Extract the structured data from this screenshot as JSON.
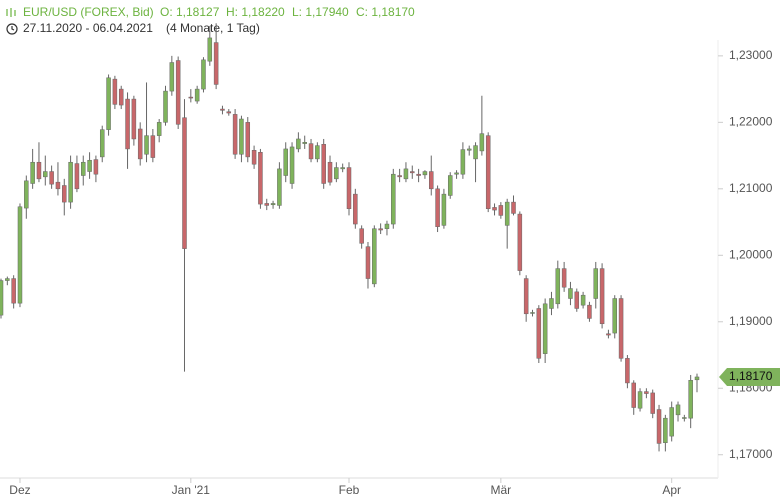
{
  "chart_data": {
    "type": "candlestick",
    "title": "EUR/USD (FOREX, Bid)",
    "ohlc_labels": [
      "O: 1,18127",
      "H: 1,18220",
      "L: 1,17940",
      "C: 1,18170"
    ],
    "period": "27.11.2020 - 06.04.2021",
    "duration": "(4 Monate, 1 Tag)",
    "up_color": "#7fb35c",
    "down_color": "#c8676a",
    "ylim": [
      1.1665,
      1.2375
    ],
    "yticks": [
      {
        "value": 1.17,
        "label": "1,17000"
      },
      {
        "value": 1.18,
        "label": "1,18000"
      },
      {
        "value": 1.19,
        "label": "1,19000"
      },
      {
        "value": 1.2,
        "label": "1,20000"
      },
      {
        "value": 1.21,
        "label": "1,21000"
      },
      {
        "value": 1.22,
        "label": "1,22000"
      },
      {
        "value": 1.23,
        "label": "1,23000"
      }
    ],
    "price_tag": {
      "value": 1.1817,
      "label": "1,18170"
    },
    "categories": [
      null,
      null,
      null,
      "Dez",
      null,
      null,
      null,
      null,
      null,
      null,
      null,
      null,
      null,
      null,
      null,
      null,
      null,
      null,
      null,
      null,
      null,
      null,
      null,
      null,
      null,
      null,
      null,
      null,
      null,
      null,
      "Jan '21",
      null,
      null,
      null,
      null,
      null,
      null,
      null,
      null,
      null,
      null,
      null,
      null,
      null,
      null,
      null,
      null,
      null,
      null,
      null,
      null,
      null,
      null,
      null,
      null,
      "Feb",
      null,
      null,
      null,
      null,
      null,
      null,
      null,
      null,
      null,
      null,
      null,
      null,
      null,
      null,
      null,
      null,
      null,
      null,
      null,
      null,
      null,
      null,
      null,
      "Mär",
      null,
      null,
      null,
      null,
      null,
      null,
      null,
      null,
      null,
      null,
      null,
      null,
      null,
      null,
      null,
      null,
      null,
      null,
      null,
      null,
      null,
      null,
      null,
      null,
      null,
      null,
      "Apr",
      null,
      null,
      null,
      null
    ],
    "open": [
      1.191,
      1.1962,
      1.1965,
      1.1928,
      1.2071,
      1.2108,
      1.214,
      1.2118,
      1.2126,
      1.211,
      1.2105,
      1.208,
      1.2138,
      1.212,
      1.2126,
      1.2144,
      1.2148,
      1.2189,
      1.2265,
      1.225,
      1.2235,
      1.2235,
      1.219,
      1.2152,
      1.218,
      1.218,
      1.22,
      1.2247,
      1.2293,
      1.2207,
      1.2238,
      1.2232,
      1.225,
      1.2292,
      1.232,
      1.222,
      1.2216,
      1.2212,
      1.2152,
      1.22,
      1.2158,
      1.2155,
      1.2078,
      1.2076,
      1.2075,
      1.212,
      1.2108,
      1.216,
      1.2168,
      1.2168,
      1.2145,
      1.2167,
      1.214,
      1.2115,
      1.213,
      1.2132,
      1.2092,
      1.204,
      1.2013,
      1.1957,
      1.204,
      1.204,
      1.2047,
      1.212,
      1.2115,
      1.2126,
      1.2122,
      1.2121,
      1.2126,
      1.21,
      1.2045,
      1.209,
      1.2122,
      1.2122,
      1.2158,
      1.2145,
      1.2157,
      1.218,
      1.2072,
      1.2075,
      1.2045,
      1.208,
      1.2062,
      1.1965,
      1.1913,
      1.192,
      1.1852,
      1.192,
      1.1927,
      1.198,
      1.1935,
      1.1945,
      1.1925,
      1.1925,
      1.1935,
      1.198,
      1.1882,
      1.1883,
      1.1935,
      1.1845,
      1.1808,
      1.177,
      1.1795,
      1.1793,
      1.1768,
      1.1718,
      1.1728,
      1.176,
      1.1755,
      1.1755,
      1.18127
    ],
    "high": [
      1.1965,
      1.1968,
      1.197,
      1.2078,
      1.212,
      1.216,
      1.217,
      1.215,
      1.2135,
      1.214,
      1.2115,
      1.215,
      1.215,
      1.215,
      1.2155,
      1.215,
      1.2195,
      1.2272,
      1.227,
      1.2255,
      1.2245,
      1.224,
      1.22,
      1.226,
      1.219,
      1.2205,
      1.2255,
      1.23,
      1.2299,
      1.2235,
      1.225,
      1.2255,
      1.2298,
      1.2345,
      1.2349,
      1.2225,
      1.222,
      1.222,
      1.221,
      1.2208,
      1.2165,
      1.216,
      1.2085,
      1.2082,
      1.214,
      1.217,
      1.217,
      1.2185,
      1.218,
      1.2175,
      1.217,
      1.2175,
      1.215,
      1.214,
      1.2138,
      1.214,
      1.21,
      1.2045,
      1.202,
      1.2045,
      1.2048,
      1.2052,
      1.213,
      1.213,
      1.214,
      1.2135,
      1.213,
      1.2128,
      1.215,
      1.2105,
      1.21,
      1.2125,
      1.2128,
      1.217,
      1.2165,
      1.217,
      1.224,
      1.2185,
      1.2078,
      1.208,
      1.2085,
      1.209,
      1.2066,
      1.197,
      1.1918,
      1.1925,
      1.1935,
      1.1945,
      1.1992,
      1.199,
      1.196,
      1.195,
      1.1945,
      1.193,
      1.199,
      1.1988,
      1.1888,
      1.194,
      1.194,
      1.185,
      1.1812,
      1.18,
      1.18,
      1.1798,
      1.1775,
      1.176,
      1.178,
      1.178,
      1.176,
      1.182,
      1.1822
    ],
    "low": [
      1.1905,
      1.1955,
      1.192,
      1.1922,
      1.2055,
      1.21,
      1.211,
      1.2105,
      1.21,
      1.209,
      1.206,
      1.207,
      1.2095,
      1.2105,
      1.2115,
      1.211,
      1.214,
      1.218,
      1.222,
      1.222,
      1.213,
      1.2165,
      1.2135,
      1.214,
      1.214,
      1.217,
      1.2195,
      1.224,
      1.219,
      1.1825,
      1.223,
      1.2228,
      1.2245,
      1.2285,
      1.225,
      1.2212,
      1.221,
      1.2145,
      1.214,
      1.214,
      1.213,
      1.207,
      1.2068,
      1.207,
      1.207,
      1.211,
      1.21,
      1.2155,
      1.216,
      1.214,
      1.214,
      1.21,
      1.2105,
      1.211,
      1.2125,
      1.206,
      1.204,
      1.201,
      1.195,
      1.1952,
      1.2032,
      1.203,
      1.204,
      1.211,
      1.211,
      1.2115,
      1.211,
      1.2115,
      1.209,
      1.2035,
      1.204,
      1.2085,
      1.2115,
      1.2115,
      1.215,
      1.211,
      1.215,
      1.2065,
      1.206,
      1.2055,
      1.201,
      1.206,
      1.197,
      1.19,
      1.1908,
      1.1838,
      1.1838,
      1.191,
      1.192,
      1.1945,
      1.1925,
      1.1915,
      1.192,
      1.19,
      1.192,
      1.189,
      1.1875,
      1.1875,
      1.184,
      1.18,
      1.176,
      1.1765,
      1.1785,
      1.1755,
      1.1705,
      1.1705,
      1.172,
      1.175,
      1.175,
      1.174,
      1.1794
    ],
    "close": [
      1.1962,
      1.1965,
      1.1928,
      1.2073,
      1.2112,
      1.214,
      1.2115,
      1.2126,
      1.2107,
      1.21,
      1.208,
      1.214,
      1.21,
      1.214,
      1.2143,
      1.2122,
      1.2189,
      1.2267,
      1.2227,
      1.2226,
      1.216,
      1.2175,
      1.2145,
      1.218,
      1.2147,
      1.22,
      1.2247,
      1.229,
      1.2197,
      1.201,
      1.2237,
      1.225,
      1.2294,
      1.2327,
      1.2257,
      1.2218,
      1.2214,
      1.2152,
      1.2205,
      1.2148,
      1.2137,
      1.2077,
      1.2075,
      1.2078,
      1.213,
      1.216,
      1.2163,
      1.2175,
      1.217,
      1.2145,
      1.2165,
      1.2108,
      1.211,
      1.2132,
      1.2132,
      1.207,
      1.2047,
      1.2018,
      1.1965,
      1.204,
      1.2038,
      1.2047,
      1.2122,
      1.2118,
      1.213,
      1.2124,
      1.212,
      1.2126,
      1.21,
      1.2043,
      1.2092,
      1.212,
      1.2124,
      1.2159,
      1.216,
      1.2165,
      1.2183,
      1.207,
      1.2068,
      1.206,
      1.208,
      1.2063,
      1.1977,
      1.1912,
      1.1914,
      1.1845,
      1.1927,
      1.1935,
      1.198,
      1.1952,
      1.195,
      1.192,
      1.194,
      1.1905,
      1.198,
      1.1897,
      1.188,
      1.1935,
      1.1845,
      1.1808,
      1.1771,
      1.1795,
      1.1792,
      1.1762,
      1.1717,
      1.1755,
      1.1771,
      1.1775,
      1.1756,
      1.1812,
      1.1817
    ]
  }
}
